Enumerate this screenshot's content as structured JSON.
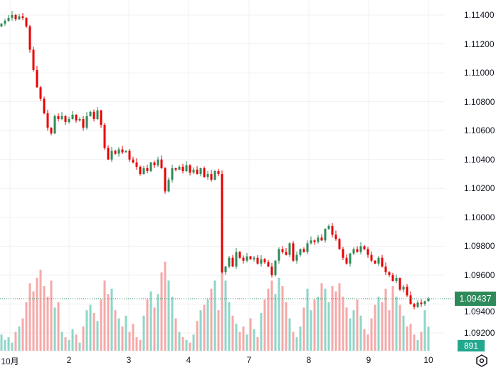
{
  "chart_data": {
    "type": "candlestick",
    "price_axis": {
      "min": 1.0912,
      "max": 1.1152,
      "ticks": [
        "1.11400",
        "1.11200",
        "1.11000",
        "1.10800",
        "1.10600",
        "1.10400",
        "1.10200",
        "1.10000",
        "1.09800",
        "1.09600",
        "1.09400",
        "1.09200"
      ]
    },
    "time_axis": {
      "ticks": [
        "10月",
        "2",
        "3",
        "4",
        "7",
        "8",
        "9",
        "10"
      ]
    },
    "first_open": 1.1132,
    "close": [
      1.1134,
      1.1136,
      1.1138,
      1.114,
      1.1137,
      1.1139,
      1.1138,
      1.1132,
      1.1116,
      1.1102,
      1.109,
      1.1082,
      1.1072,
      1.1062,
      1.1058,
      1.107,
      1.1068,
      1.107,
      1.1066,
      1.1068,
      1.1071,
      1.1067,
      1.1068,
      1.1062,
      1.107,
      1.1073,
      1.1068,
      1.1074,
      1.1064,
      1.1048,
      1.104,
      1.1046,
      1.1044,
      1.1047,
      1.1045,
      1.1046,
      1.104,
      1.1038,
      1.1035,
      1.103,
      1.1034,
      1.1032,
      1.1038,
      1.1036,
      1.104,
      1.1034,
      1.1018,
      1.1026,
      1.1034,
      1.1033,
      1.1035,
      1.1032,
      1.1036,
      1.1031,
      1.1033,
      1.103,
      1.1034,
      1.1028,
      1.103,
      1.1026,
      1.1032,
      1.103,
      1.0962,
      1.0966,
      1.0972,
      1.0966,
      1.0976,
      1.0972,
      1.097,
      1.0973,
      1.0971,
      1.0972,
      1.0968,
      1.0971,
      1.0969,
      1.0966,
      1.096,
      1.097,
      1.0978,
      1.0976,
      1.0974,
      1.0982,
      1.097,
      1.0974,
      1.0978,
      1.0976,
      1.0982,
      1.0984,
      1.0983,
      1.0986,
      1.0984,
      1.0992,
      1.0994,
      1.0988,
      1.0985,
      1.0978,
      1.0972,
      1.0968,
      1.0975,
      1.0978,
      1.0976,
      1.098,
      1.0978,
      1.0974,
      1.097,
      1.0968,
      1.0972,
      1.0966,
      1.0962,
      1.096,
      1.0956,
      1.0958,
      1.095,
      1.0952,
      1.0946,
      1.094,
      1.0938,
      1.0941,
      1.094,
      1.0942,
      1.09437
    ],
    "volume": [
      600,
      400,
      500,
      300,
      700,
      900,
      1200,
      1800,
      2500,
      2200,
      2700,
      3000,
      2400,
      2000,
      2600,
      1600,
      1800,
      700,
      500,
      400,
      800,
      600,
      300,
      900,
      1500,
      1700,
      1400,
      1100,
      1900,
      2600,
      2100,
      2300,
      1500,
      1200,
      900,
      1300,
      700,
      1000,
      500,
      400,
      1300,
      1900,
      2200,
      1600,
      2100,
      2900,
      3300,
      2600,
      2000,
      1200,
      700,
      500,
      400,
      300,
      600,
      1100,
      1500,
      1700,
      1900,
      2300,
      2600,
      1500,
      3100,
      2600,
      1800,
      1300,
      1000,
      700,
      900,
      600,
      1200,
      800,
      500,
      1400,
      1900,
      2300,
      2600,
      2100,
      2700,
      2400,
      1800,
      1200,
      700,
      500,
      900,
      1600,
      2300,
      1500,
      1900,
      2000,
      2500,
      2300,
      1800,
      2400,
      2200,
      2500,
      2000,
      1600,
      1200,
      1500,
      1900,
      1300,
      800,
      600,
      1200,
      1700,
      2000,
      1800,
      2300,
      1500,
      2400,
      2000,
      1700,
      1300,
      900,
      1000,
      600,
      400,
      700,
      1500,
      891
    ],
    "last_price": "1.09437",
    "last_volume": "891",
    "colors": {
      "up": "#2e8a5a",
      "down": "#e80000",
      "vol_up": "#8ed6c8",
      "vol_down": "#f6a8a8",
      "grid": "#f0f0f0"
    }
  }
}
